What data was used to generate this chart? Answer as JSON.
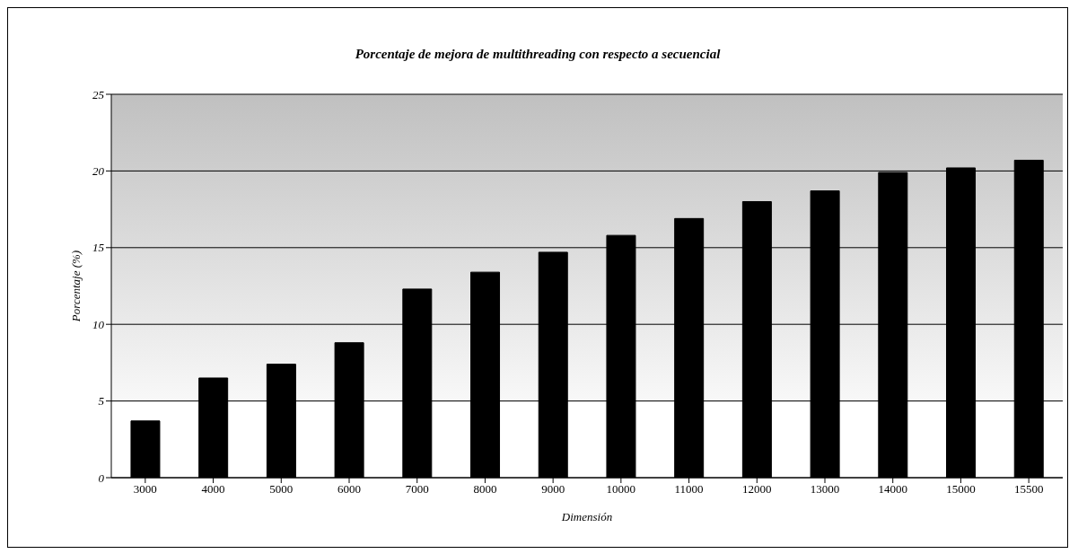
{
  "chart_data": {
    "type": "bar",
    "title": "Porcentaje de mejora de multithreading con respecto a secuencial",
    "xlabel": "Dimensión",
    "ylabel": "Porcentaje (%)",
    "categories": [
      "3000",
      "4000",
      "5000",
      "6000",
      "7000",
      "8000",
      "9000",
      "10000",
      "11000",
      "12000",
      "13000",
      "14000",
      "15000",
      "15500"
    ],
    "values": [
      3.7,
      6.5,
      7.4,
      8.8,
      12.3,
      13.4,
      14.7,
      15.8,
      16.9,
      18.0,
      18.7,
      19.9,
      20.2,
      20.7
    ],
    "color": "#000000",
    "ylim": [
      0,
      25
    ],
    "yticks": [
      0,
      5,
      10,
      15,
      20,
      25
    ],
    "grid": "y",
    "legend": false
  }
}
